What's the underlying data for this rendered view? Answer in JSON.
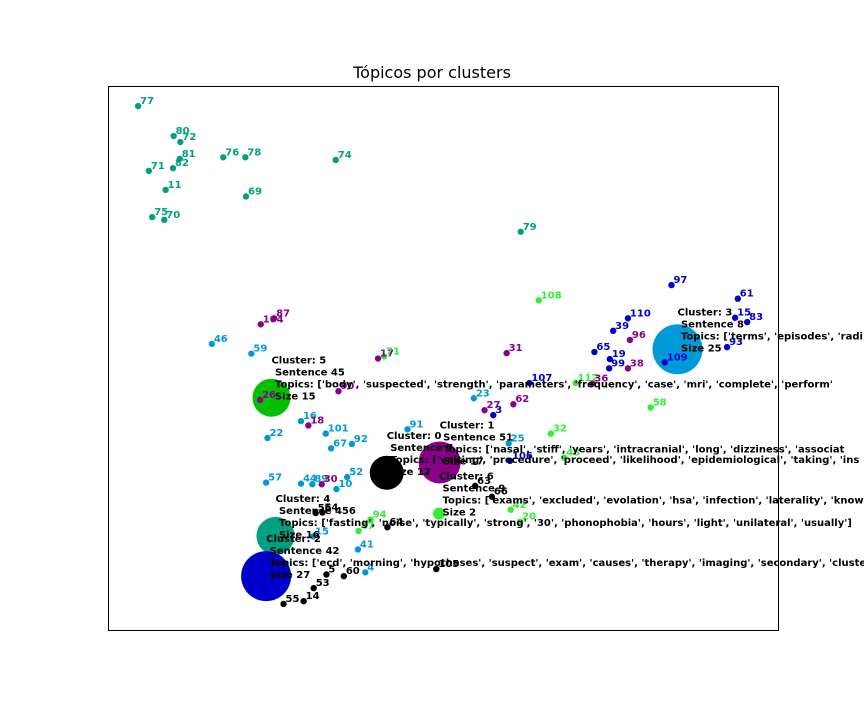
{
  "chart_data": {
    "type": "scatter",
    "title": "Tópicos por clusters",
    "xlabel": "",
    "ylabel": "",
    "xlim": [
      0,
      100
    ],
    "ylim": [
      0,
      100
    ],
    "grid": false,
    "legend": "none",
    "colors": {
      "0": "#000000",
      "1": "#8b008b",
      "2": "#00c000",
      "3": "#0000cd",
      "4": "#00a080",
      "5": "#009ad8",
      "6": "#33ee33"
    },
    "points": [
      {
        "label": "77",
        "x": 4.5,
        "y": 96.3,
        "c": "4"
      },
      {
        "label": "80",
        "x": 9.8,
        "y": 90.8,
        "c": "4"
      },
      {
        "label": "72",
        "x": 10.8,
        "y": 89.7,
        "c": "4"
      },
      {
        "label": "81",
        "x": 10.7,
        "y": 86.6,
        "c": "4"
      },
      {
        "label": "82",
        "x": 9.7,
        "y": 84.9,
        "c": "4"
      },
      {
        "label": "71",
        "x": 6.1,
        "y": 84.4,
        "c": "4"
      },
      {
        "label": "76",
        "x": 17.2,
        "y": 86.9,
        "c": "4"
      },
      {
        "label": "78",
        "x": 20.5,
        "y": 86.9,
        "c": "4"
      },
      {
        "label": "74",
        "x": 34,
        "y": 86.4,
        "c": "4"
      },
      {
        "label": "11",
        "x": 8.6,
        "y": 80.9,
        "c": "4"
      },
      {
        "label": "69",
        "x": 20.6,
        "y": 79.7,
        "c": "4"
      },
      {
        "label": "75",
        "x": 6.6,
        "y": 75.9,
        "c": "4"
      },
      {
        "label": "70",
        "x": 8.4,
        "y": 75.4,
        "c": "4"
      },
      {
        "label": "79",
        "x": 61.6,
        "y": 73.2,
        "c": "4"
      },
      {
        "label": "108",
        "x": 64.3,
        "y": 60.6,
        "c": "6"
      },
      {
        "label": "87",
        "x": 24.8,
        "y": 57.3,
        "c": "1"
      },
      {
        "label": "104",
        "x": 22.8,
        "y": 56.2,
        "c": "1"
      },
      {
        "label": "97",
        "x": 84.1,
        "y": 63.4,
        "c": "3"
      },
      {
        "label": "61",
        "x": 94,
        "y": 60.9,
        "c": "3"
      },
      {
        "label": "110",
        "x": 77.6,
        "y": 57.3,
        "c": "3"
      },
      {
        "label": "15",
        "x": 93.6,
        "y": 57.4,
        "c": "3"
      },
      {
        "label": "83",
        "x": 95.4,
        "y": 56.6,
        "c": "3"
      },
      {
        "label": "39",
        "x": 75.4,
        "y": 55.0,
        "c": "3"
      },
      {
        "label": "96",
        "x": 77.9,
        "y": 53.3,
        "c": "1"
      },
      {
        "label": "93",
        "x": 92.4,
        "y": 52.0,
        "c": "3"
      },
      {
        "label": "46",
        "x": 15.5,
        "y": 52.6,
        "c": "5"
      },
      {
        "label": "59",
        "x": 21.4,
        "y": 50.8,
        "c": "5"
      },
      {
        "label": "65",
        "x": 72.6,
        "y": 51.1,
        "c": "3"
      },
      {
        "label": "31",
        "x": 59.5,
        "y": 50.9,
        "c": "1"
      },
      {
        "label": "17",
        "x": 40.3,
        "y": 49.9,
        "c": "1"
      },
      {
        "label": "71",
        "x": 41.2,
        "y": 50.3,
        "c": "6"
      },
      {
        "label": "19",
        "x": 74.9,
        "y": 49.8,
        "c": "3"
      },
      {
        "label": "109",
        "x": 83.1,
        "y": 49.2,
        "c": "3"
      },
      {
        "label": "99",
        "x": 74.8,
        "y": 48.1,
        "c": "3"
      },
      {
        "label": "38",
        "x": 77.6,
        "y": 48.1,
        "c": "1"
      },
      {
        "label": "107",
        "x": 62.9,
        "y": 45.4,
        "c": "3"
      },
      {
        "label": "112",
        "x": 69.8,
        "y": 45.4,
        "c": "6"
      },
      {
        "label": "36",
        "x": 72.3,
        "y": 45.3,
        "c": "1"
      },
      {
        "label": "90",
        "x": 34.4,
        "y": 43.9,
        "c": "1"
      },
      {
        "label": "23",
        "x": 54.6,
        "y": 42.6,
        "c": "5"
      },
      {
        "label": "26",
        "x": 22.7,
        "y": 42.3,
        "c": "1"
      },
      {
        "label": "62",
        "x": 60.5,
        "y": 41.5,
        "c": "1"
      },
      {
        "label": "58",
        "x": 81,
        "y": 40.9,
        "c": "6"
      },
      {
        "label": "27",
        "x": 56.2,
        "y": 40.4,
        "c": "1"
      },
      {
        "label": "3",
        "x": 57.5,
        "y": 39.5,
        "c": "3"
      },
      {
        "label": "16",
        "x": 28.8,
        "y": 38.4,
        "c": "5"
      },
      {
        "label": "18",
        "x": 29.9,
        "y": 37.6,
        "c": "1"
      },
      {
        "label": "91",
        "x": 44.7,
        "y": 36.9,
        "c": "5"
      },
      {
        "label": "101",
        "x": 32.5,
        "y": 36.1,
        "c": "5"
      },
      {
        "label": "32",
        "x": 66.1,
        "y": 36.1,
        "c": "6"
      },
      {
        "label": "22",
        "x": 23.8,
        "y": 35.3,
        "c": "5"
      },
      {
        "label": "25",
        "x": 59.8,
        "y": 34.3,
        "c": "5"
      },
      {
        "label": "92",
        "x": 36.4,
        "y": 34.2,
        "c": "5"
      },
      {
        "label": "67",
        "x": 33.3,
        "y": 33.4,
        "c": "5"
      },
      {
        "label": "48",
        "x": 68.1,
        "y": 31.7,
        "c": "6"
      },
      {
        "label": "106",
        "x": 60,
        "y": 31.1,
        "c": "3"
      },
      {
        "label": "52",
        "x": 35.7,
        "y": 28.1,
        "c": "5"
      },
      {
        "label": "57",
        "x": 23.6,
        "y": 27.1,
        "c": "5"
      },
      {
        "label": "44",
        "x": 28.8,
        "y": 26.9,
        "c": "5"
      },
      {
        "label": "89",
        "x": 30.5,
        "y": 26.8,
        "c": "5"
      },
      {
        "label": "30",
        "x": 31.9,
        "y": 26.8,
        "c": "1"
      },
      {
        "label": "10",
        "x": 34.1,
        "y": 25.9,
        "c": "5"
      },
      {
        "label": "63",
        "x": 54.8,
        "y": 26.5,
        "c": "0"
      },
      {
        "label": "66",
        "x": 57.3,
        "y": 24.5,
        "c": "0"
      },
      {
        "label": "42",
        "x": 60.1,
        "y": 22.1,
        "c": "6"
      },
      {
        "label": "94",
        "x": 39.2,
        "y": 20.3,
        "c": "6"
      },
      {
        "label": "54",
        "x": 32,
        "y": 21.6,
        "c": "0"
      },
      {
        "label": "56",
        "x": 31,
        "y": 21.5,
        "c": "0"
      },
      {
        "label": "64",
        "x": 41.7,
        "y": 18.9,
        "c": "0"
      },
      {
        "label": "47",
        "x": 37.4,
        "y": 18.2,
        "c": "6"
      },
      {
        "label": "20",
        "x": 61.5,
        "y": 19.9,
        "c": "6"
      },
      {
        "label": "15",
        "x": 30.6,
        "y": 17.2,
        "c": "5"
      },
      {
        "label": "41",
        "x": 37.3,
        "y": 14.8,
        "c": "5"
      },
      {
        "label": "105",
        "x": 49,
        "y": 11.2,
        "c": "0"
      },
      {
        "label": "4",
        "x": 38.4,
        "y": 10.6,
        "c": "5"
      },
      {
        "label": "5",
        "x": 32.6,
        "y": 10.2,
        "c": "0"
      },
      {
        "label": "60",
        "x": 35.2,
        "y": 9.9,
        "c": "0"
      },
      {
        "label": "53",
        "x": 30.7,
        "y": 7.7,
        "c": "0"
      },
      {
        "label": "14",
        "x": 29.2,
        "y": 5.3,
        "c": "0"
      },
      {
        "label": "55",
        "x": 26.2,
        "y": 4.8,
        "c": "0"
      }
    ],
    "centroids": [
      {
        "cluster": "3",
        "x": 85,
        "y": 51.6,
        "r": 25,
        "c": "5",
        "text": [
          "Cluster: 3",
          "  Sentence 8",
          "  Topics: ['terms', 'episodes', 'radi",
          "  Size 25"
        ]
      },
      {
        "cluster": "5",
        "x": 24.4,
        "y": 42.7,
        "r": 19,
        "c": "2",
        "text": [
          "Cluster: 5",
          "  Sentence 45",
          "  Topics: ['body', 'suspected', 'strength', 'parameters', 'frequency', 'case', 'mri', 'complete', 'perform'",
          "  Size 15"
        ]
      },
      {
        "cluster": "1",
        "x": 49.5,
        "y": 30.8,
        "r": 21,
        "c": "1",
        "text": [
          "Cluster: 1",
          "  Sentence 51",
          "  Topics: ['nasal', 'stiff', 'years', 'intracranial', 'long', 'dizziness', 'associat",
          "  Size 17"
        ]
      },
      {
        "cluster": "0",
        "x": 41.6,
        "y": 28.9,
        "r": 17,
        "c": "0",
        "text": [
          "Cluster: 0",
          "  Sentence 7",
          "  Topics: ['vaiting', 'procedure', 'proceed', 'likelihood', 'epidemiological', 'taking', 'ins",
          "  Size 12"
        ]
      },
      {
        "cluster": "6",
        "x": 49.4,
        "y": 21.4,
        "r": 6,
        "c": "6",
        "text": [
          "Cluster: 6",
          "  Sentence 9",
          "  Topics: ['exams', 'excluded', 'evolation', 'hsa', 'infection', 'laterality', 'know",
          "  Size 2"
        ]
      },
      {
        "cluster": "4",
        "x": 25,
        "y": 17.3,
        "r": 19,
        "c": "4",
        "text": [
          "Cluster: 4",
          "  Sentence 456",
          "  Topics: ['fasting', 'noise', 'typically', 'strong', '30', 'phonophobia', 'hours', 'light', 'unilateral', 'usually']",
          "  Size 16"
        ]
      },
      {
        "cluster": "2",
        "x": 23.6,
        "y": 9.9,
        "r": 25,
        "c": "3",
        "text": [
          "Cluster: 2",
          "  Sentence 42",
          "  Topics: ['ecd', 'morning', 'hypotheses', 'suspect', 'exam', 'causes', 'therapy', 'imaging', 'secondary', 'cluste",
          "  Size 27"
        ]
      }
    ]
  }
}
